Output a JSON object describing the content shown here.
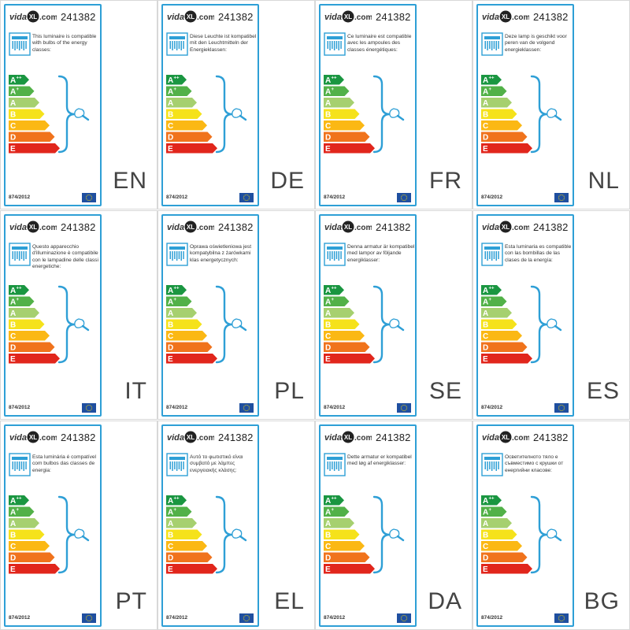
{
  "model_code": "241382",
  "regulation": "874/2012",
  "logo": {
    "pre": "vida",
    "post": ".com",
    "badge": "XL"
  },
  "energy_classes": [
    {
      "label": "A",
      "sup": "++",
      "color": "#1a9641"
    },
    {
      "label": "A",
      "sup": "+",
      "color": "#52b148"
    },
    {
      "label": "A",
      "sup": "",
      "color": "#a6d06f"
    },
    {
      "label": "B",
      "sup": "",
      "color": "#f5e21b"
    },
    {
      "label": "C",
      "sup": "",
      "color": "#fbb814"
    },
    {
      "label": "D",
      "sup": "",
      "color": "#f0731c"
    },
    {
      "label": "E",
      "sup": "",
      "color": "#e1261c"
    }
  ],
  "colors": {
    "border": "#2e9fd6",
    "eu_flag": "#1f4fa0",
    "eu_stars": "#ffdd00"
  },
  "labels": [
    {
      "lang": "EN",
      "text": "This luminaire is compatible with bulbs of the energy classes:"
    },
    {
      "lang": "DE",
      "text": "Diese Leuchte ist kompatibel mit den Leuchtmitteln der Energieklassen:"
    },
    {
      "lang": "FR",
      "text": "Ce luminaire est compatible avec les ampoules des classes énergétiques:"
    },
    {
      "lang": "NL",
      "text": "Deze lamp is geschikt voor peren van de volgend energieklassen:"
    },
    {
      "lang": "IT",
      "text": "Questo apparecchio d'illuminazione è compatibile con le lampadine delle classi energetiche:"
    },
    {
      "lang": "PL",
      "text": "Oprawa oświetleniowa jest kompatybilna z żarówkami klas energetycznych:"
    },
    {
      "lang": "SE",
      "text": "Denna armatur är kompatibel med lampor av följande energiklasser:"
    },
    {
      "lang": "ES",
      "text": "Esta luminaria es compatible con las bombillas de las clases de la energía:"
    },
    {
      "lang": "PT",
      "text": "Esta luminária é compatível com bulbos das classes de energia:"
    },
    {
      "lang": "EL",
      "text": "Αυτό το φωτιστικό είναι συμβατό με λάμπες ενεργειακής κλάσης:"
    },
    {
      "lang": "DA",
      "text": "Dette armatur er kompatibel med løg af energiklasser:"
    },
    {
      "lang": "BG",
      "text": "Осветителното тяло е съвместимо с крушки от енергийни класове:"
    }
  ]
}
